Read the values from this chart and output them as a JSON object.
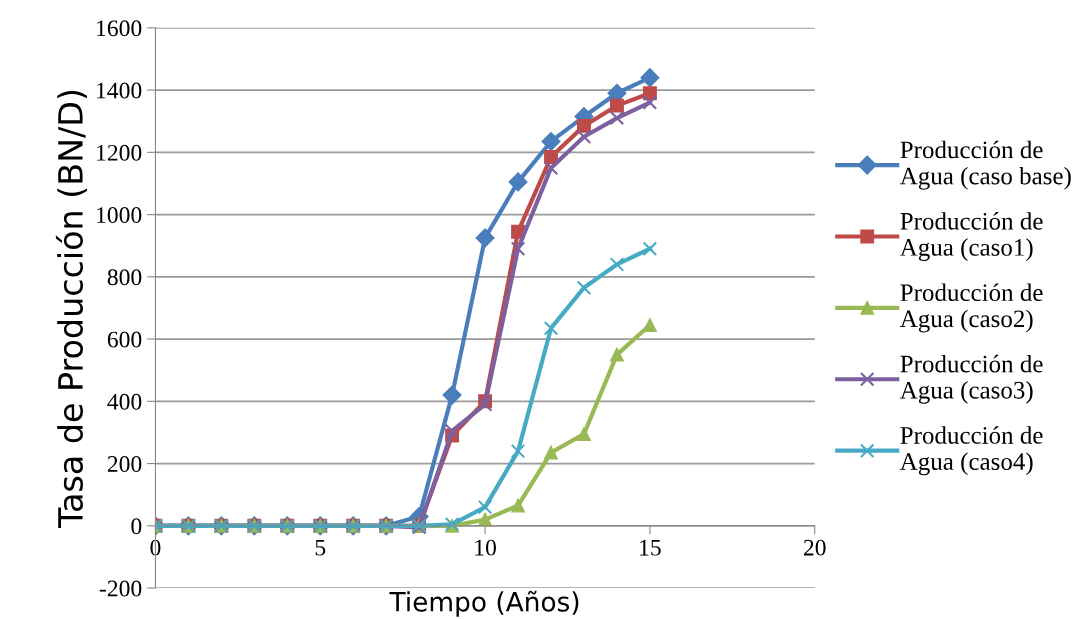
{
  "chart_data": {
    "type": "line",
    "xlabel": "Tiempo (Años)",
    "ylabel": "Tasa de Producción (BN/D)",
    "x": [
      0,
      1,
      2,
      3,
      4,
      5,
      6,
      7,
      8,
      9,
      10,
      11,
      12,
      13,
      14,
      15
    ],
    "xlim": [
      0,
      20
    ],
    "xticks": [
      0,
      5,
      10,
      15,
      20
    ],
    "ylim": [
      -200,
      1600
    ],
    "yticks": [
      -200,
      0,
      200,
      400,
      600,
      800,
      1000,
      1200,
      1400,
      1600
    ],
    "grid": "y",
    "legend": "right",
    "line_style": "solid",
    "series": [
      {
        "name": "Producción de Agua (caso base)",
        "color": "#4a7ebb",
        "marker": "diamond",
        "values": [
          0,
          0,
          0,
          0,
          0,
          0,
          0,
          0,
          30,
          420,
          925,
          1105,
          1235,
          1315,
          1390,
          1440
        ]
      },
      {
        "name": "Producción de Agua (caso1)",
        "color": "#be4b48",
        "marker": "square",
        "values": [
          0,
          0,
          0,
          0,
          0,
          0,
          0,
          0,
          0,
          290,
          400,
          945,
          1185,
          1285,
          1350,
          1390
        ]
      },
      {
        "name": "Producción de Agua (caso2)",
        "color": "#98b954",
        "marker": "triangle",
        "values": [
          0,
          0,
          0,
          0,
          0,
          0,
          0,
          0,
          0,
          0,
          20,
          65,
          235,
          295,
          550,
          645
        ]
      },
      {
        "name": "Producción de Agua (caso3)",
        "color": "#7d60a0",
        "marker": "cross",
        "values": [
          0,
          0,
          0,
          0,
          0,
          0,
          0,
          0,
          -5,
          305,
          390,
          890,
          1150,
          1250,
          1310,
          1360
        ]
      },
      {
        "name": "Producción de Agua (caso4)",
        "color": "#46aac5",
        "marker": "cross",
        "values": [
          0,
          0,
          0,
          0,
          0,
          0,
          0,
          0,
          0,
          5,
          60,
          240,
          635,
          765,
          840,
          890
        ]
      }
    ]
  }
}
